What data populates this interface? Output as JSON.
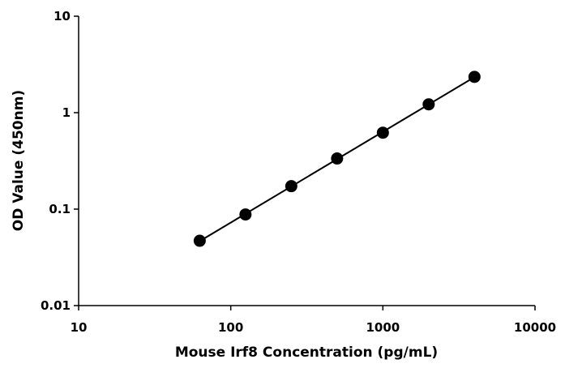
{
  "chart_data": {
    "type": "scatter",
    "title": "",
    "xlabel": "Mouse Irf8 Concentration (pg/mL)",
    "ylabel": "OD Value (450nm)",
    "x_scale": "log",
    "y_scale": "log",
    "xlim": [
      10,
      10000
    ],
    "ylim": [
      0.01,
      10
    ],
    "x_ticks": [
      10,
      100,
      1000,
      10000
    ],
    "x_tick_labels": [
      "10",
      "100",
      "1000",
      "10000"
    ],
    "y_ticks": [
      0.01,
      0.1,
      1,
      10
    ],
    "y_tick_labels": [
      "0.01",
      "0.1",
      "1",
      "10"
    ],
    "grid": false,
    "legend": "none",
    "series": [
      {
        "x": [
          62.5,
          125,
          250,
          500,
          1000,
          2000,
          4000
        ],
        "y": [
          0.047,
          0.088,
          0.173,
          0.335,
          0.62,
          1.22,
          2.35
        ],
        "marker": "circle",
        "color": "#000000",
        "trendline": "power"
      }
    ]
  }
}
